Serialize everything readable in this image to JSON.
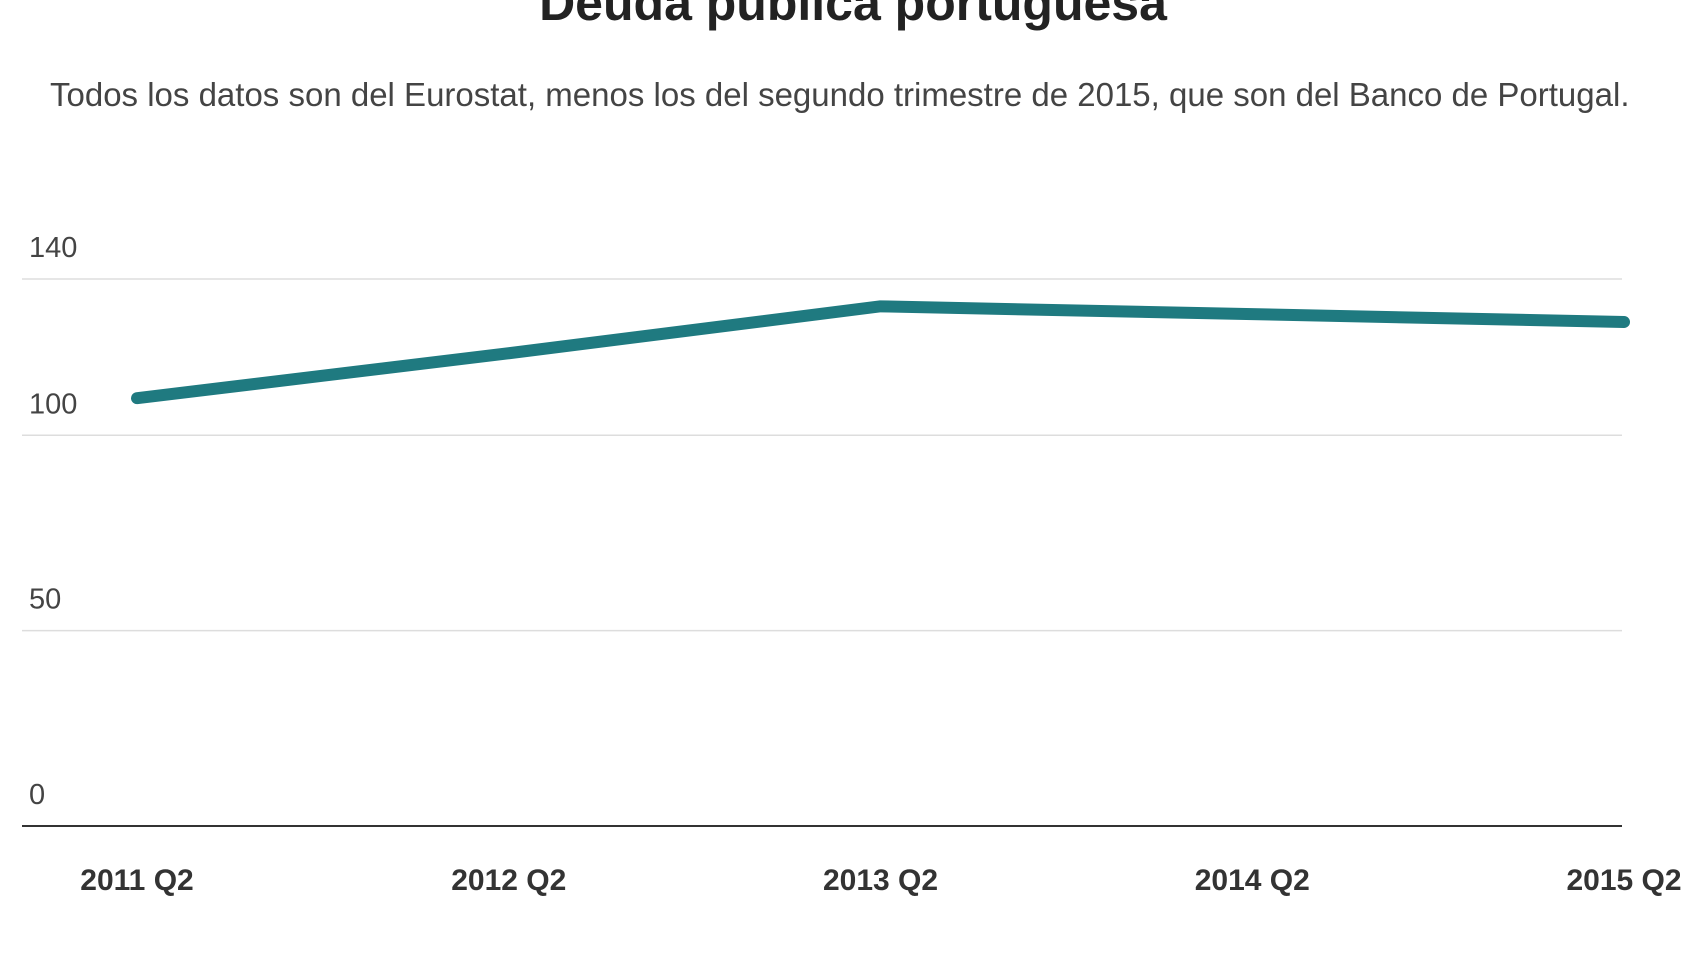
{
  "chart_data": {
    "type": "line",
    "title": "Deuda pública portuguesa",
    "subtitle": "Todos los datos son del Eurostat, menos los del segundo trimestre de 2015, que son del Banco de Portugal.",
    "categories": [
      "2011 Q2",
      "2012 Q2",
      "2013 Q2",
      "2014 Q2",
      "2015 Q2"
    ],
    "series": [
      {
        "color": "#1f7a80",
        "values": [
          109.5,
          121,
          133,
          131,
          129
        ]
      }
    ],
    "ylim": [
      0,
      140
    ],
    "yticks": [
      0,
      50,
      100,
      140
    ],
    "grid": true
  }
}
